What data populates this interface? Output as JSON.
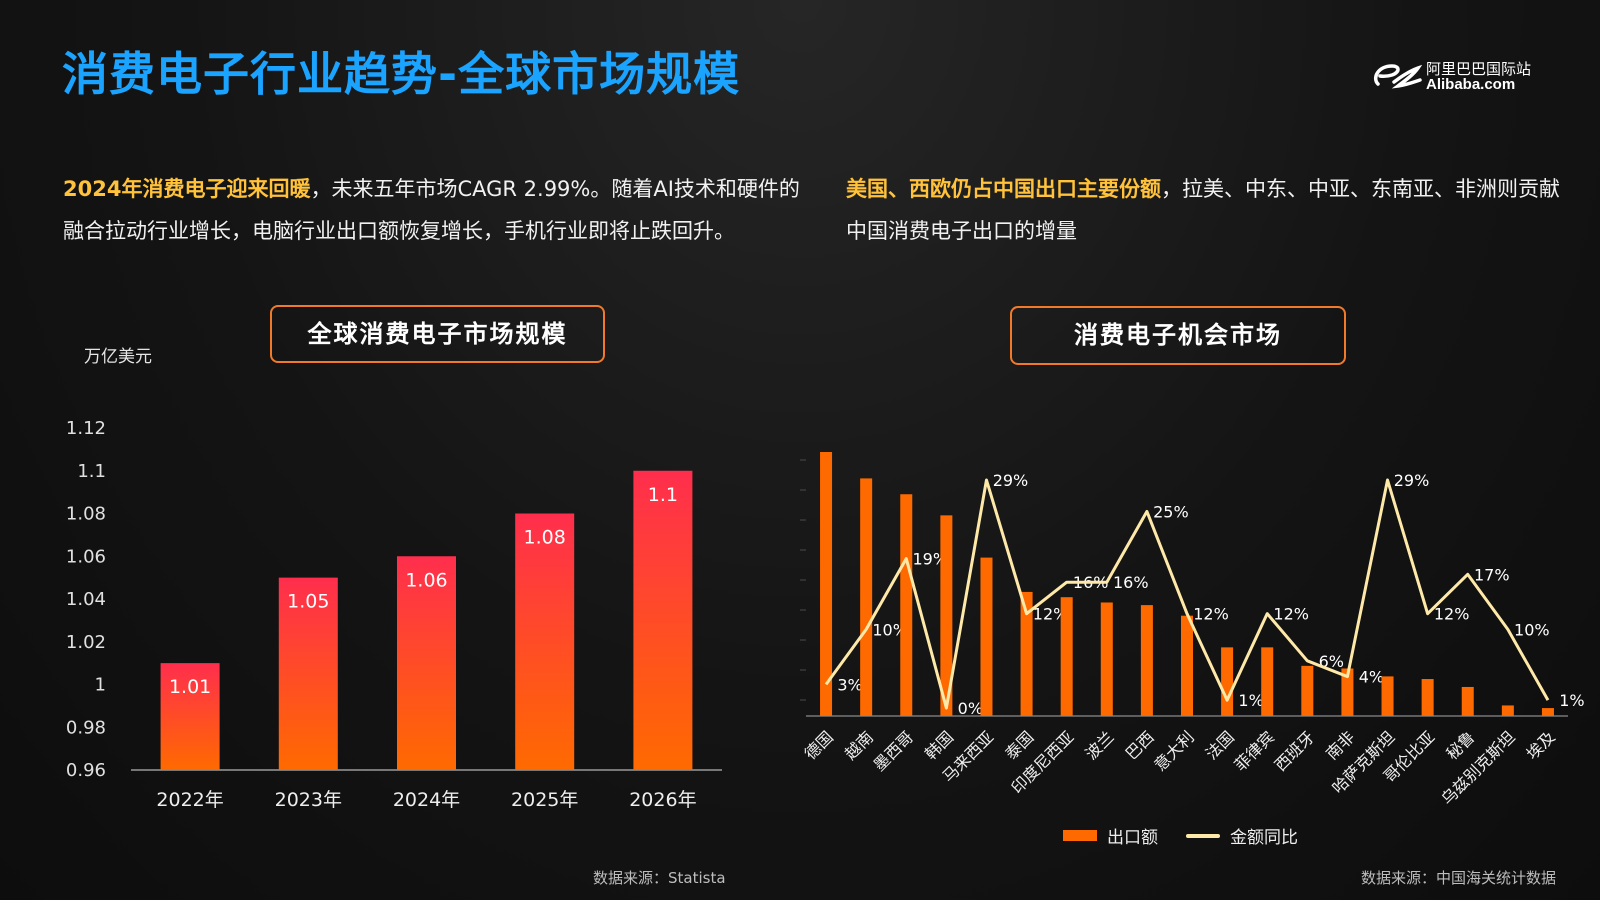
{
  "header": {
    "title": "消费电子行业趋势-全球市场规模",
    "logo_cn": "阿里巴巴国际站",
    "logo_en": "Alibaba.com"
  },
  "left": {
    "desc_highlight": "2024年消费电子迎来回暖",
    "desc_rest": "，未来五年市场CAGR 2.99%。随着AI技术和硬件的融合拉动行业增长，电脑行业出口额恢复增长，手机行业即将止跌回升。",
    "box_title": "全球消费电子市场规模",
    "unit": "万亿美元",
    "source": "数据来源：Statista"
  },
  "right": {
    "desc_highlight": "美国、西欧仍占中国出口主要份额",
    "desc_rest": "，拉美、中东、中亚、东南亚、非洲则贡献中国消费电子出口的增量",
    "box_title": "消费电子机会市场",
    "legend_bar": "出口额",
    "legend_line": "金额同比",
    "source": "数据来源：中国海关统计数据"
  },
  "colors": {
    "title": "#1aa3ff",
    "highlight": "#ffc23a",
    "bar_top": "#ff2e4d",
    "bar_bottom": "#ff6a00",
    "export_bar": "#ff6a00",
    "yoy_line": "#ffe9a8",
    "box_border": "#f07a2a"
  },
  "chart_data": [
    {
      "type": "bar",
      "categories": [
        "2022年",
        "2023年",
        "2024年",
        "2025年",
        "2026年"
      ],
      "values": [
        1.01,
        1.05,
        1.06,
        1.08,
        1.1
      ],
      "value_labels": [
        "1.01",
        "1.05",
        "1.06",
        "1.08",
        "1.1"
      ],
      "ylim": [
        0.96,
        1.12
      ],
      "yticks": [
        0.96,
        0.98,
        1,
        1.02,
        1.04,
        1.06,
        1.08,
        1.1,
        1.12
      ],
      "ytick_labels": [
        "0.96",
        "0.98",
        "1",
        "1.02",
        "1.04",
        "1.06",
        "1.08",
        "1.1",
        "1.12"
      ],
      "ylabel": "万亿美元",
      "title": "全球消费电子市场规模",
      "grid": false
    },
    {
      "type": "bar",
      "title": "消费电子机会市场",
      "categories": [
        "德国",
        "越南",
        "墨西哥",
        "韩国",
        "马来西亚",
        "泰国",
        "印度尼西亚",
        "波兰",
        "巴西",
        "意大利",
        "法国",
        "菲律宾",
        "西班牙",
        "南非",
        "哈萨克斯坦",
        "哥伦比亚",
        "秘鲁",
        "乌兹别克斯坦",
        "埃及"
      ],
      "series": [
        {
          "name": "出口额",
          "type": "bar",
          "values": [
            100,
            90,
            84,
            76,
            60,
            47,
            45,
            43,
            42,
            38,
            26,
            26,
            19,
            18,
            15,
            14,
            11,
            4,
            3
          ]
        },
        {
          "name": "金额同比",
          "type": "line",
          "values": [
            3,
            10,
            19,
            0,
            29,
            12,
            16,
            16,
            25,
            12,
            1,
            12,
            6,
            4,
            29,
            12,
            17,
            10,
            1
          ],
          "labels": [
            "3%",
            "10%",
            "19%",
            "0%",
            "29%",
            "12%",
            "16%",
            "16%",
            "25%",
            "12%",
            "1%",
            "12%",
            "6%",
            "4%",
            "29%",
            "12%",
            "17%",
            "10%",
            "1%"
          ]
        }
      ],
      "legend": "bottom",
      "grid": false
    }
  ]
}
